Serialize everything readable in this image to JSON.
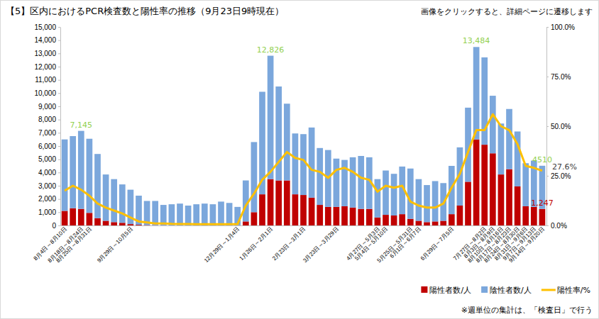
{
  "chart_data": {
    "type": "bar",
    "title": "【5】区内におけるPCR検査数と陽性率の推移（9月23日9時現在）",
    "subtitle": "画像をクリックすると、詳細ページに遷移します",
    "note": "※週単位の集計は、「検査日」で行う",
    "stacked": true,
    "grid": false,
    "legend": "bottom",
    "categories": [
      "8月4日～8月10日",
      null,
      "8月18日～8月24日",
      "8月25日～8月31日",
      null,
      null,
      null,
      null,
      "9月29日～10月5日",
      null,
      null,
      null,
      null,
      null,
      null,
      null,
      null,
      null,
      null,
      null,
      null,
      "12月29日～1月4日",
      null,
      null,
      null,
      "1月26日～2月1日",
      null,
      null,
      null,
      "2月23日～3月1日",
      null,
      null,
      null,
      "3月23日～3月29日",
      null,
      null,
      null,
      null,
      "4月27日～5月3日",
      "5月4日～5月10日",
      null,
      null,
      "5月25日～5月31日",
      "6月1日～6月7日",
      null,
      null,
      null,
      "6月29日～7月5日",
      null,
      null,
      null,
      "7月27日～8月2日",
      "8月3日～8月9日",
      "8月10日～8月16日",
      "8月17日～8月23日",
      "8月24日～8月30日",
      "8月31日～9月6日",
      "9月7日～9月13日",
      "9月14日～9月20日"
    ],
    "series": [
      {
        "name": "陽性者数/人",
        "color": "#c00000",
        "type": "bar",
        "values": [
          1100,
          1300,
          1250,
          950,
          550,
          350,
          250,
          200,
          100,
          50,
          30,
          20,
          15,
          10,
          10,
          10,
          10,
          10,
          10,
          10,
          10,
          10,
          300,
          1000,
          2350,
          3500,
          3400,
          3400,
          2350,
          2300,
          2100,
          1550,
          1400,
          1400,
          1450,
          1350,
          1250,
          1250,
          600,
          800,
          750,
          850,
          500,
          350,
          250,
          300,
          350,
          850,
          1500,
          3300,
          6500,
          6100,
          5450,
          3850,
          4250,
          2950,
          1450,
          1400,
          1247
        ]
      },
      {
        "name": "陰性者数/人",
        "color": "#7ba7dc",
        "type": "bar",
        "values": [
          5400,
          5450,
          5895,
          5600,
          4850,
          3500,
          3250,
          2900,
          2600,
          2200,
          1820,
          1830,
          1535,
          1590,
          1640,
          1490,
          1590,
          1640,
          1590,
          1790,
          1690,
          1390,
          3100,
          5300,
          7750,
          9326,
          7100,
          5800,
          4600,
          4600,
          5300,
          4300,
          4300,
          3650,
          3500,
          3800,
          4000,
          3900,
          2900,
          3350,
          3150,
          3600,
          3800,
          3150,
          2800,
          3050,
          2850,
          3650,
          4400,
          5600,
          6984,
          6600,
          4350,
          3850,
          4550,
          4150,
          3250,
          3500,
          3263
        ]
      },
      {
        "name": "陽性率/%",
        "color": "#ffc000",
        "type": "line",
        "axis": "y2",
        "values": [
          17.5,
          20,
          18,
          15,
          11,
          9,
          7.5,
          6,
          4,
          2,
          1.5,
          1,
          1,
          0.8,
          0.7,
          0.7,
          0.6,
          0.6,
          0.6,
          0.6,
          0.6,
          0.7,
          10,
          16,
          23,
          27,
          32,
          37,
          34,
          33,
          28,
          27,
          24,
          28,
          29,
          27,
          24,
          23,
          17,
          20,
          19,
          20,
          12,
          10,
          9,
          9,
          11,
          19,
          26,
          37,
          48,
          48,
          56,
          50,
          48,
          41,
          30,
          29,
          27.6
        ]
      }
    ],
    "ylim": [
      0,
      15000
    ],
    "yticks": [
      0,
      {
        "value": 1000,
        "label": "1,000"
      },
      {
        "value": 2000,
        "label": "2,000"
      },
      {
        "value": 3000,
        "label": "3,000"
      },
      {
        "value": 4000,
        "label": "4,000"
      },
      {
        "value": 5000,
        "label": "5,000"
      },
      {
        "value": 6000,
        "label": "6,000"
      },
      {
        "value": 7000,
        "label": "7,000"
      },
      {
        "value": 8000,
        "label": "8,000"
      },
      {
        "value": 9000,
        "label": "9,000"
      },
      {
        "value": 10000,
        "label": "10,000"
      },
      {
        "value": 11000,
        "label": "11,000"
      },
      {
        "value": 12000,
        "label": "12,000"
      },
      {
        "value": 13000,
        "label": "13,000"
      },
      {
        "value": 14000,
        "label": "14,000"
      },
      {
        "value": 15000,
        "label": "15,000"
      }
    ],
    "y2lim": [
      0,
      100
    ],
    "y2ticks": [
      {
        "value": 0,
        "label": "0.0%"
      },
      {
        "value": 25,
        "label": "25.0%"
      },
      {
        "value": 50,
        "label": "50.0%"
      },
      {
        "value": 75,
        "label": "75.0%"
      },
      {
        "value": 100,
        "label": "100.0%"
      }
    ],
    "annotations": [
      {
        "text": "7,145",
        "value": 7145,
        "index": 2,
        "color": "#92d050"
      },
      {
        "text": "12,826",
        "value": 12826,
        "index": 25,
        "color": "#92d050"
      },
      {
        "text": "13,484",
        "value": 13484,
        "index": 50,
        "color": "#92d050"
      },
      {
        "text": "4510",
        "value": 4510,
        "index": 58,
        "color": "#92d050"
      },
      {
        "text": "27.6%",
        "value": 27.6,
        "index": 58,
        "axis": "y2",
        "color": "#404040"
      },
      {
        "text": "1,247",
        "value": 1247,
        "index": 58,
        "color": "#c00000"
      }
    ]
  }
}
